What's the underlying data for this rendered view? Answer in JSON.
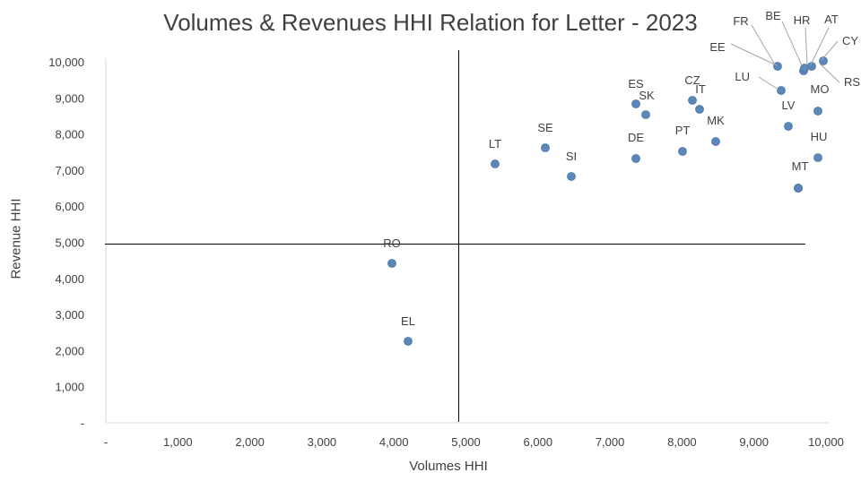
{
  "chart_data": {
    "type": "scatter",
    "title": "Volumes & Revenues HHI Relation for Letter - 2023",
    "xlabel": "Volumes HHI",
    "ylabel": "Revenue HHI",
    "xlim": [
      0,
      10000
    ],
    "ylim": [
      0,
      10000
    ],
    "x_ticks": [
      "-",
      "1,000",
      "2,000",
      "3,000",
      "4,000",
      "5,000",
      "6,000",
      "7,000",
      "8,000",
      "9,000",
      "10,000"
    ],
    "y_ticks": [
      "-",
      "1,000",
      "2,000",
      "3,000",
      "4,000",
      "5,000",
      "6,000",
      "7,000",
      "8,000",
      "9,000",
      "10,000"
    ],
    "reference_lines": {
      "x": 4900,
      "y": 4950
    },
    "grid": false,
    "legend": "none",
    "marker_color": "#5b87b9",
    "points": [
      {
        "label": "RO",
        "x": 4030,
        "y": 4470
      },
      {
        "label": "EL",
        "x": 4250,
        "y": 2270
      },
      {
        "label": "LT",
        "x": 5480,
        "y": 7170
      },
      {
        "label": "SE",
        "x": 6130,
        "y": 7630
      },
      {
        "label": "SI",
        "x": 6500,
        "y": 6850
      },
      {
        "label": "ES",
        "x": 7410,
        "y": 8850
      },
      {
        "label": "SK",
        "x": 7580,
        "y": 8550
      },
      {
        "label": "DE",
        "x": 7390,
        "y": 7330
      },
      {
        "label": "PT",
        "x": 8050,
        "y": 7550
      },
      {
        "label": "CZ",
        "x": 8200,
        "y": 8950
      },
      {
        "label": "IT",
        "x": 8290,
        "y": 8700
      },
      {
        "label": "MK",
        "x": 8500,
        "y": 7820
      },
      {
        "label": "FR",
        "x": 9370,
        "y": 9890
      },
      {
        "label": "EE",
        "x": 9400,
        "y": 9220
      },
      {
        "label": "LU",
        "x": 9530,
        "y": 8230
      },
      {
        "label": "LV",
        "x": 9700,
        "y": 9800
      },
      {
        "label": "BE",
        "x": 9730,
        "y": 9870
      },
      {
        "label": "HR",
        "x": 9820,
        "y": 9900
      },
      {
        "label": "AT",
        "x": 9990,
        "y": 10050
      },
      {
        "label": "CY",
        "x": 9910,
        "y": 8680
      },
      {
        "label": "MO",
        "x": 9910,
        "y": 7370
      },
      {
        "label": "RS",
        "x": 9680,
        "y": 6530
      },
      {
        "label": "HU",
        "x": 9650,
        "y": 6530
      },
      {
        "label": "MT",
        "x": 9640,
        "y": 6530
      }
    ]
  }
}
